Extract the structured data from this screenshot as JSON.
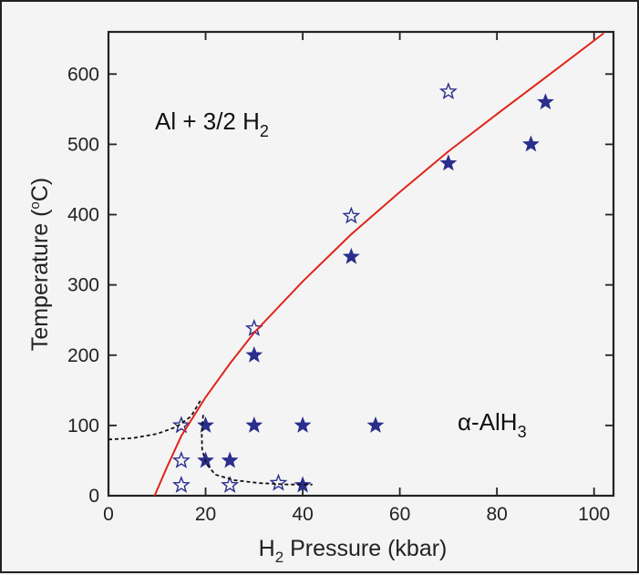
{
  "chart_data": {
    "type": "scatter",
    "xlabel": "H₂ Pressure (kbar)",
    "ylabel": "Temperature (°C)",
    "xlim": [
      0,
      104
    ],
    "ylim": [
      0,
      660
    ],
    "xticks": [
      0,
      20,
      40,
      60,
      80,
      100
    ],
    "yticks": [
      0,
      100,
      200,
      300,
      400,
      500,
      600
    ],
    "grid": false,
    "annotations": [
      {
        "text": "Al + 3/2 H₂",
        "x": 20,
        "y": 555
      },
      {
        "text": "α-AlH₃",
        "x": 87,
        "y": 100
      }
    ],
    "series": [
      {
        "marker": "filled-star",
        "color": "#2a2e8c",
        "points": [
          [
            20,
            100
          ],
          [
            20,
            50
          ],
          [
            25,
            50
          ],
          [
            30,
            100
          ],
          [
            30,
            200
          ],
          [
            40,
            100
          ],
          [
            40,
            15
          ],
          [
            55,
            100
          ],
          [
            50,
            340
          ],
          [
            70,
            473
          ],
          [
            87,
            500
          ],
          [
            90,
            560
          ]
        ]
      },
      {
        "marker": "open-star",
        "color": "#2a2e8c",
        "points": [
          [
            15,
            100
          ],
          [
            15,
            50
          ],
          [
            15,
            15
          ],
          [
            25,
            15
          ],
          [
            35,
            18
          ],
          [
            30,
            238
          ],
          [
            50,
            398
          ],
          [
            70,
            575
          ]
        ]
      },
      {
        "style": "solid-line",
        "color": "#e0241b",
        "points": [
          [
            9.5,
            0
          ],
          [
            12,
            40
          ],
          [
            15,
            85
          ],
          [
            20,
            140
          ],
          [
            25,
            188
          ],
          [
            30,
            232
          ],
          [
            40,
            305
          ],
          [
            50,
            372
          ],
          [
            60,
            432
          ],
          [
            70,
            490
          ],
          [
            80,
            543
          ],
          [
            90,
            595
          ],
          [
            102,
            658
          ]
        ]
      },
      {
        "style": "dashed-line",
        "color": "#111111",
        "points": [
          [
            0,
            80
          ],
          [
            5,
            82
          ],
          [
            10,
            88
          ],
          [
            14,
            98
          ],
          [
            17,
            113
          ],
          [
            19,
            136
          ]
        ]
      },
      {
        "style": "dashed-line",
        "color": "#111111",
        "points": [
          [
            19.5,
            115
          ],
          [
            19.2,
            90
          ],
          [
            19.3,
            65
          ],
          [
            20.2,
            45
          ],
          [
            22,
            30
          ],
          [
            26,
            22
          ],
          [
            31,
            18
          ],
          [
            37,
            16
          ],
          [
            42,
            16
          ]
        ]
      }
    ]
  }
}
